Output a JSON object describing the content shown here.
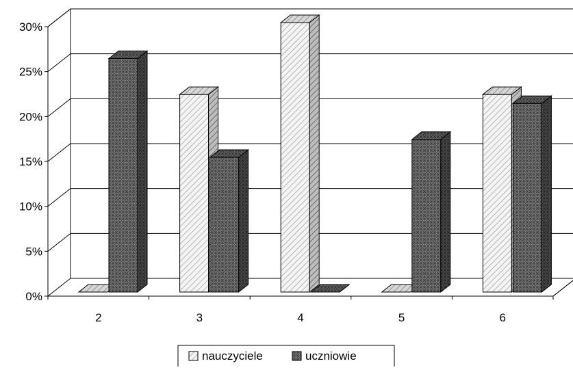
{
  "chart_data": {
    "type": "bar",
    "style": "3d-clustered",
    "categories": [
      "2",
      "3",
      "4",
      "5",
      "6"
    ],
    "series": [
      {
        "name": "nauczyciele",
        "values": [
          0,
          22,
          30,
          0,
          22
        ],
        "pattern": "diagonal-hatch-light",
        "color": "#d9d9d9"
      },
      {
        "name": "uczniowie",
        "values": [
          26,
          15,
          0,
          17,
          21
        ],
        "pattern": "crosshatch-dark",
        "color": "#555555"
      }
    ],
    "y_ticks": [
      "0%",
      "5%",
      "10%",
      "15%",
      "20%",
      "25%",
      "30%"
    ],
    "ylim": [
      0,
      30
    ],
    "grid": true,
    "legend_position": "bottom-center"
  }
}
